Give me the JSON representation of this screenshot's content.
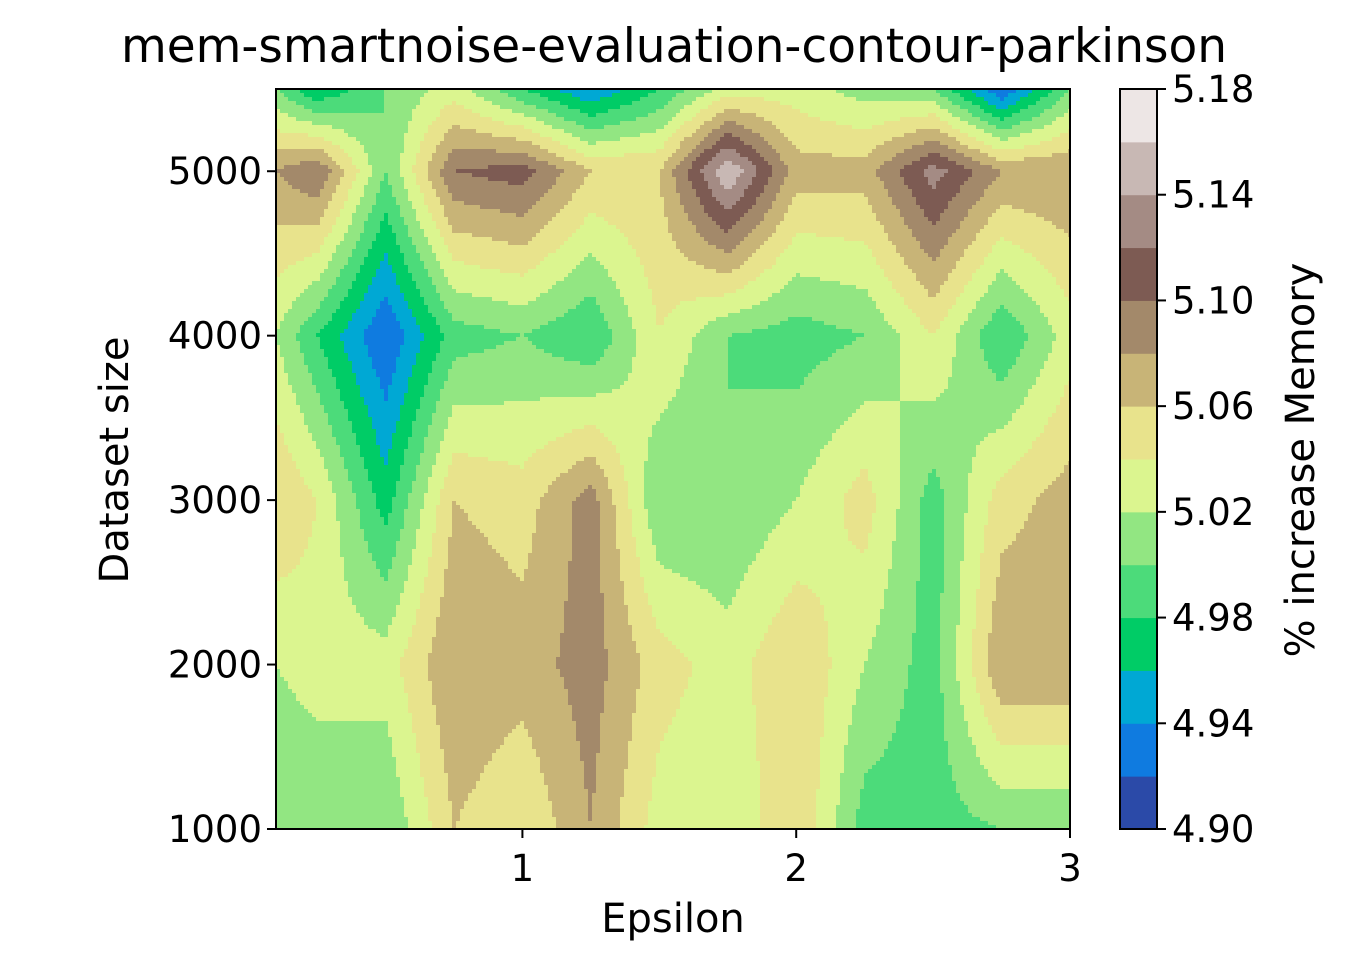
{
  "chart_data": {
    "type": "heatmap",
    "subtype": "filled-contour",
    "title": "mem-smartnoise-evaluation-contour-parkinson",
    "xlabel": "Epsilon",
    "ylabel": "Dataset size",
    "colorbar_label": "% increase Memory",
    "xlim": [
      0.1,
      3.0
    ],
    "ylim": [
      1000,
      5500
    ],
    "x_ticks": [
      1,
      2,
      3
    ],
    "x_tick_labels": [
      "1",
      "2",
      "3"
    ],
    "y_ticks": [
      1000,
      2000,
      3000,
      4000,
      5000
    ],
    "y_tick_labels": [
      "1000",
      "2000",
      "3000",
      "4000",
      "5000"
    ],
    "colorbar_ticks": [
      4.9,
      4.94,
      4.98,
      5.02,
      5.06,
      5.1,
      5.14,
      5.18
    ],
    "colorbar_tick_labels": [
      "4.90",
      "4.94",
      "4.98",
      "5.02",
      "5.06",
      "5.10",
      "5.14",
      "5.18"
    ],
    "levels": [
      4.9,
      4.92,
      4.94,
      4.96,
      4.98,
      5.0,
      5.02,
      5.04,
      5.06,
      5.08,
      5.1,
      5.12,
      5.14,
      5.16,
      5.18
    ],
    "colormap": "terrain",
    "level_colors": [
      "#2b4aa8",
      "#0f7be0",
      "#00a8d4",
      "#00cc66",
      "#4cdb7a",
      "#92e682",
      "#dbf58f",
      "#e8e38c",
      "#c8b477",
      "#a3896a",
      "#7d5b53",
      "#a48b84",
      "#c8b8b4",
      "#ede6e5"
    ],
    "x": [
      0.1,
      0.25,
      0.5,
      0.75,
      1.0,
      1.25,
      1.5,
      1.75,
      2.0,
      2.25,
      2.5,
      2.75,
      3.0
    ],
    "y": [
      1000,
      2000,
      3000,
      4000,
      5000,
      5500
    ],
    "z": [
      [
        5.0,
        5.0,
        5.0,
        5.06,
        5.04,
        5.08,
        5.03,
        5.02,
        5.06,
        4.99,
        4.99,
        5.0,
        5.0
      ],
      [
        5.02,
        5.03,
        5.03,
        5.08,
        5.07,
        5.09,
        5.05,
        5.03,
        5.06,
        5.02,
        4.99,
        5.08,
        5.08
      ],
      [
        5.06,
        5.04,
        4.97,
        5.06,
        5.05,
        5.09,
        5.0,
        5.0,
        5.02,
        5.05,
        4.99,
        5.05,
        5.07
      ],
      [
        5.02,
        4.98,
        4.92,
        4.99,
        5.0,
        4.98,
        5.04,
        5.0,
        4.99,
        5.0,
        5.04,
        4.98,
        5.03
      ],
      [
        5.08,
        5.1,
        5.0,
        5.1,
        5.11,
        5.06,
        5.06,
        5.16,
        5.07,
        5.07,
        5.13,
        5.08,
        5.08
      ],
      [
        5.0,
        4.96,
        5.0,
        5.03,
        4.98,
        4.94,
        4.98,
        5.03,
        5.03,
        5.01,
        5.0,
        4.92,
        5.0
      ]
    ]
  }
}
